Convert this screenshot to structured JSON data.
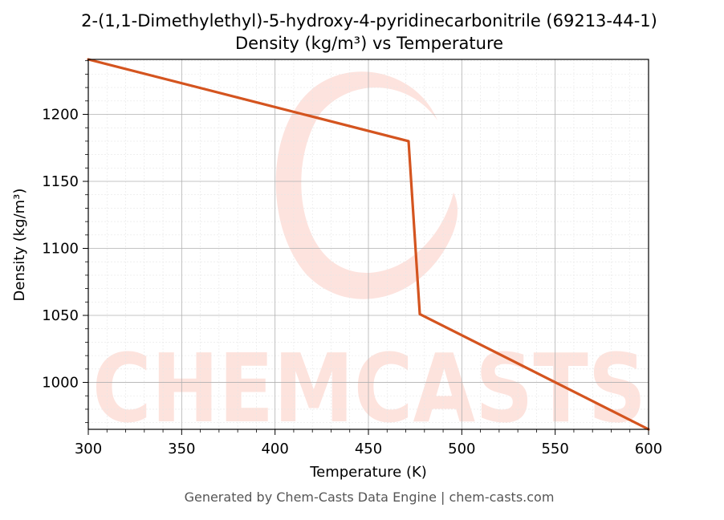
{
  "chart_data": {
    "type": "line",
    "title": "2-(1,1-Dimethylethyl)-5-hydroxy-4-pyridinecarbonitrile (69213-44-1)",
    "subtitle": "Density (kg/m³) vs Temperature",
    "xlabel": "Temperature (K)",
    "ylabel": "Density (kg/m³)",
    "xlim": [
      300,
      600
    ],
    "ylim": [
      965,
      1241
    ],
    "x_ticks": [
      300,
      350,
      400,
      450,
      500,
      550,
      600
    ],
    "y_ticks": [
      1000,
      1050,
      1100,
      1150,
      1200
    ],
    "x_tick_labels": [
      "300",
      "350",
      "400",
      "450",
      "500",
      "550",
      "600"
    ],
    "y_tick_labels": [
      "1000",
      "1050",
      "1100",
      "1150",
      "1200"
    ],
    "grid": true,
    "series": [
      {
        "color": "#d4541f",
        "x": [
          300,
          471.5,
          477.5,
          600
        ],
        "y": [
          1241,
          1180,
          1051,
          965
        ]
      }
    ]
  },
  "watermark": {
    "text": "CHEMCASTS",
    "color": "#fde0da"
  },
  "footer": "Generated by Chem-Casts Data Engine | chem-casts.com"
}
